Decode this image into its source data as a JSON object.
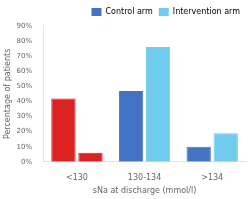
{
  "chart_data": {
    "type": "bar",
    "categories": [
      "<130",
      "130-134",
      ">134"
    ],
    "series": [
      {
        "name": "Control arm",
        "color": "#4472C4",
        "colors": [
          "#DD2222",
          "#4472C4",
          "#4472C4"
        ],
        "values": [
          42,
          47,
          10
        ]
      },
      {
        "name": "Intervention arm",
        "color": "#70CCEE",
        "colors": [
          "#DD2222",
          "#70CCEE",
          "#70CCEE"
        ],
        "values": [
          6,
          76,
          19
        ]
      }
    ],
    "xlabel": "sNa at discharge (mmol/l)",
    "ylabel": "Percentage of patients",
    "ylim": [
      0,
      90
    ],
    "yticks": [
      {
        "value": 0,
        "label": "0%"
      },
      {
        "value": 10,
        "label": "10%"
      },
      {
        "value": 20,
        "label": "20%"
      },
      {
        "value": 30,
        "label": "30%"
      },
      {
        "value": 40,
        "label": "40%"
      },
      {
        "value": 50,
        "label": "50%"
      },
      {
        "value": 60,
        "label": "60%"
      },
      {
        "value": 70,
        "label": "70%"
      },
      {
        "value": 80,
        "label": "80%"
      },
      {
        "value": 90,
        "label": "90%"
      }
    ],
    "grid": false,
    "legend": "upper right"
  }
}
